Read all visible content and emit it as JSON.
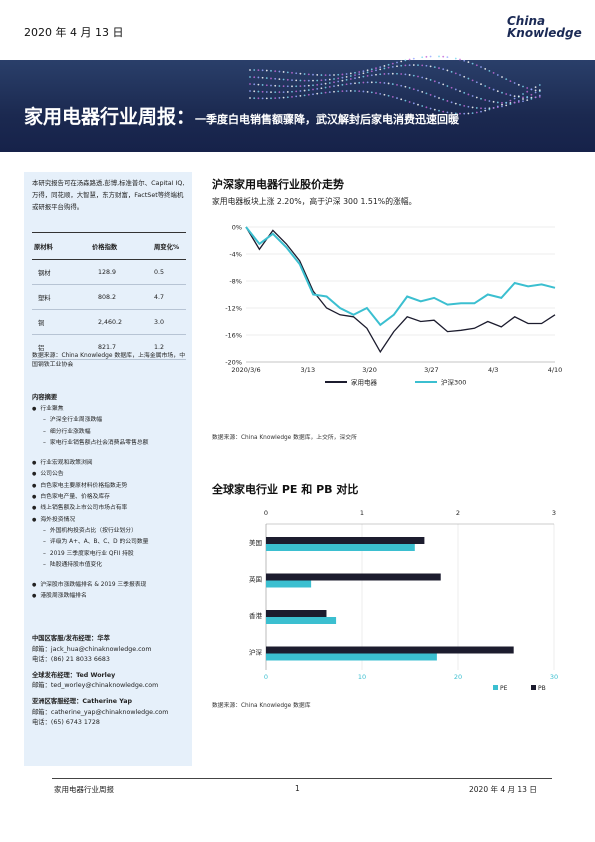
{
  "header": {
    "date": "2020 年 4 月 13 日",
    "logo_line1": "China",
    "logo_line2": "Knowledge",
    "title_main": "家用电器行业周报：",
    "title_sub": "一季度白电销售额骤降，武汉解封后家电消费迅速回暖"
  },
  "sidebar": {
    "source_text": "本研究报告可在汤森路透,彭博,标准普尔、Capital IQ,万得，同花顺，大智慧，东方财富，FactSet等终端机或研报平台购得。",
    "table": {
      "headers": [
        "原材料",
        "价格指数",
        "周变化%"
      ],
      "rows": [
        [
          "钢材",
          "128.9",
          "0.5"
        ],
        [
          "塑料",
          "808.2",
          "4.7"
        ],
        [
          "铜",
          "2,460.2",
          "3.0"
        ],
        [
          "铝",
          "821.7",
          "1.2"
        ]
      ]
    },
    "table_note": "数据来源：China Knowledge 数据库，上海金属市场，中国钢铁工业协会",
    "toc_title": "内容摘要",
    "toc": [
      {
        "level": "b",
        "text": "行业聚焦"
      },
      {
        "level": "s",
        "text": "沪深全行业周涨跌幅"
      },
      {
        "level": "s",
        "text": "细分行业涨跌幅"
      },
      {
        "level": "s",
        "text": "家电行业销售额占社会消费品零售总额"
      },
      {
        "level": "gap",
        "text": ""
      },
      {
        "level": "b",
        "text": "行业宏观和政策浏阅"
      },
      {
        "level": "b",
        "text": "公司公告"
      },
      {
        "level": "b",
        "text": "白色家电主要原材料价格指数走势"
      },
      {
        "level": "b",
        "text": "白色家电产量、价格及库存"
      },
      {
        "level": "b",
        "text": "线上销售额及上市公司市场占有率"
      },
      {
        "level": "b",
        "text": "海外投资情况"
      },
      {
        "level": "s",
        "text": "外国机构投资占比（按行业划分）"
      },
      {
        "level": "s",
        "text": "评级为 A+、A、B、C、D 的公司数量"
      },
      {
        "level": "s",
        "text": "2019 三季度家电行业 QFII 持股"
      },
      {
        "level": "s",
        "text": "陆股通持股市值变化"
      },
      {
        "level": "gap",
        "text": ""
      },
      {
        "level": "b",
        "text": "沪深股市涨跌幅排名 & 2019 三季报表现"
      },
      {
        "level": "b",
        "text": "港股周涨跌幅排名"
      }
    ],
    "contacts": [
      {
        "title": "中国区客服/发布经理：华萃",
        "lines": [
          "邮箱：jack_hua@chinaknowledge.com",
          "电话：(86) 21 8033 6683"
        ]
      },
      {
        "title": "全球发布经理：Ted Worley",
        "lines": [
          "邮箱：ted_worley@chinaknowledge.com"
        ]
      },
      {
        "title": "亚洲区客服经理：Catherine Yap",
        "lines": [
          "邮箱：catherine_yap@chinaknowledge.com",
          "电话：(65) 6743 1728"
        ]
      }
    ]
  },
  "section1": {
    "title": "沪深家用电器行业股价走势",
    "subtitle": "家用电器板块上涨 2.20%，高于沪深 300 1.51%的涨幅。",
    "source": "数据来源：China Knowledge 数据库，上交所，深交所"
  },
  "section2": {
    "title": "全球家电行业 PE 和 PB 对比",
    "source": "数据来源：China Knowledge 数据库"
  },
  "footer": {
    "left": "家用电器行业周报",
    "page": "1",
    "right": "2020 年 4 月 13 日"
  },
  "colors": {
    "dark_series": "#1c1c2e",
    "teal_series": "#3bbfd0",
    "banner": "#1b2950"
  },
  "chart_data": [
    {
      "type": "line",
      "x_ticks": [
        "2020/3/6",
        "3/13",
        "3/20",
        "3/27",
        "4/3",
        "4/10"
      ],
      "ylim": [
        -20,
        0
      ],
      "y_ticks": [
        "0%",
        "-4%",
        "-8%",
        "-12%",
        "-16%",
        "-20%"
      ],
      "y_tick_values": [
        0,
        -4,
        -8,
        -12,
        -16,
        -20
      ],
      "grid": true,
      "legend": "bottom",
      "series": [
        {
          "name": "家用电器",
          "color": "#1c1c2e",
          "values": [
            0,
            -3.3,
            -0.5,
            -2.5,
            -5.0,
            -9.5,
            -12.0,
            -13.0,
            -13.3,
            -15.0,
            -18.5,
            -15.5,
            -13.3,
            -14.0,
            -13.8,
            -15.5,
            -15.3,
            -15.0,
            -14.0,
            -14.8,
            -13.3,
            -14.3,
            -14.3,
            -13.0
          ]
        },
        {
          "name": "沪深300",
          "color": "#3bbfd0",
          "values": [
            0,
            -2.5,
            -1.0,
            -3.0,
            -5.5,
            -10.0,
            -10.3,
            -12.0,
            -13.0,
            -12.0,
            -14.5,
            -13.0,
            -10.3,
            -11.0,
            -10.5,
            -11.5,
            -11.3,
            -11.3,
            -10.0,
            -10.5,
            -8.3,
            -8.8,
            -8.5,
            -9.0
          ]
        }
      ]
    },
    {
      "type": "bar",
      "orientation": "horizontal",
      "categories": [
        "美国",
        "英国",
        "香港",
        "沪深"
      ],
      "top_axis": {
        "label": "",
        "ticks": [
          "0",
          "1",
          "2",
          "3"
        ],
        "range": [
          0,
          3
        ]
      },
      "bottom_axis": {
        "label": "",
        "ticks": [
          "0",
          "10",
          "20",
          "30"
        ],
        "range": [
          0,
          30
        ]
      },
      "legend": "bottom-right",
      "series": [
        {
          "name": "PE",
          "color": "#3bbfd0",
          "axis": "bottom",
          "values": [
            15.5,
            4.7,
            7.3,
            17.8
          ]
        },
        {
          "name": "PB",
          "color": "#1c1c2e",
          "axis": "top",
          "values": [
            1.65,
            1.82,
            0.63,
            2.58
          ]
        }
      ]
    }
  ]
}
